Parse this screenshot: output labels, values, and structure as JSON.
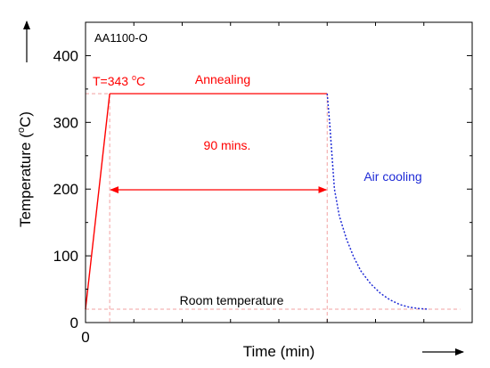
{
  "chart_data": {
    "type": "line",
    "title": "",
    "annotation_sample": "AA1100-O",
    "xlabel": "Time (min)",
    "ylabel_main": "Temperature (",
    "ylabel_sup": "o",
    "ylabel_end": "C)",
    "xlim": [
      0,
      160
    ],
    "ylim": [
      0,
      450
    ],
    "x_ticks": [
      {
        "value": 0,
        "label": "0"
      }
    ],
    "y_ticks": [
      {
        "value": 0,
        "label": "0"
      },
      {
        "value": 100,
        "label": "100"
      },
      {
        "value": 200,
        "label": "200"
      },
      {
        "value": 300,
        "label": "300"
      },
      {
        "value": 400,
        "label": "400"
      }
    ],
    "x_minor_ticks": [
      20,
      40,
      60,
      80,
      100,
      120,
      140,
      160
    ],
    "y_minor_ticks": [
      50,
      150,
      250,
      350,
      450
    ],
    "heating": [
      [
        0,
        20
      ],
      [
        10,
        343
      ]
    ],
    "hold": [
      [
        10,
        343
      ],
      [
        100,
        343
      ]
    ],
    "cooling": [
      [
        100,
        343
      ],
      [
        101,
        300
      ],
      [
        102,
        250
      ],
      [
        103,
        200
      ],
      [
        105,
        160
      ],
      [
        108,
        125
      ],
      [
        111,
        98
      ],
      [
        114,
        77
      ],
      [
        118,
        58
      ],
      [
        122,
        44
      ],
      [
        126,
        34
      ],
      [
        130,
        27
      ],
      [
        134,
        23
      ],
      [
        138,
        21
      ],
      [
        142,
        20
      ]
    ],
    "annealing_temperature": 343,
    "room_temperature": 20,
    "hold_duration_min": 90,
    "labels": {
      "temperature_prefix": "T=343 ",
      "temperature_sup": "o",
      "temperature_suffix": "C",
      "annealing": "Annealing",
      "duration": "90 mins.",
      "air_cooling": "Air cooling",
      "room_temperature": "Room temperature"
    },
    "colors": {
      "heating": "#ff0000",
      "hold": "#ff0000",
      "cooling": "#1f2bd6",
      "guides": "#f2a0a0",
      "axis": "#000000"
    }
  }
}
